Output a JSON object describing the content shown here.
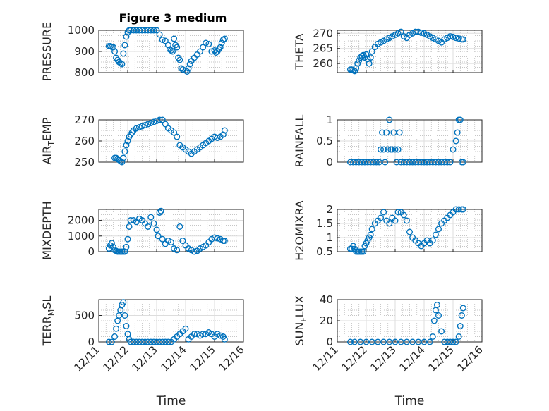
{
  "figure": {
    "title": "Figure 3 medium",
    "marker_color": "#0072BD",
    "x_ticks": [
      {
        "v": 0,
        "label": "12/11"
      },
      {
        "v": 1,
        "label": "12/12"
      },
      {
        "v": 2,
        "label": "12/13"
      },
      {
        "v": 3,
        "label": "12/14"
      },
      {
        "v": 4,
        "label": "12/15"
      },
      {
        "v": 5,
        "label": "12/16"
      }
    ],
    "x_label": "Time"
  },
  "chart_data": [
    {
      "type": "scatter",
      "ylabel": "PRESSURE",
      "xlim": [
        0,
        5
      ],
      "ylim": [
        800,
        1000
      ],
      "yticks": [
        800,
        900,
        1000
      ],
      "xgrid_label": "Time",
      "series": [
        {
          "x": [
            0.35,
            0.4,
            0.45,
            0.5,
            0.55,
            0.6,
            0.65,
            0.7,
            0.75,
            0.8,
            0.85,
            0.9,
            0.95,
            1.0,
            1.05,
            1.1,
            1.2,
            1.3,
            1.4,
            1.5,
            1.6,
            1.7,
            1.8,
            1.9,
            2.0,
            2.1,
            2.2,
            2.3,
            2.4,
            2.45,
            2.5,
            2.55,
            2.6,
            2.65,
            2.7,
            2.75,
            2.8,
            2.85,
            2.9,
            3.0,
            3.05,
            3.1,
            3.15,
            3.2,
            3.3,
            3.4,
            3.5,
            3.6,
            3.7,
            3.8,
            3.9,
            4.0,
            4.05,
            4.1,
            4.15,
            4.2,
            4.25,
            4.3,
            4.35
          ],
          "y": [
            925,
            925,
            922,
            920,
            900,
            870,
            860,
            850,
            845,
            840,
            890,
            930,
            970,
            990,
            1000,
            1000,
            1000,
            1000,
            1000,
            1000,
            1000,
            1000,
            1000,
            1000,
            1000,
            980,
            955,
            950,
            930,
            910,
            905,
            900,
            960,
            930,
            920,
            870,
            860,
            820,
            815,
            810,
            805,
            820,
            840,
            855,
            870,
            885,
            900,
            920,
            940,
            935,
            900,
            905,
            895,
            900,
            910,
            920,
            940,
            955,
            960
          ]
        }
      ]
    },
    {
      "type": "scatter",
      "ylabel": "THETA",
      "xlim": [
        0,
        5
      ],
      "ylim": [
        257,
        271
      ],
      "yticks": [
        260,
        265,
        270
      ],
      "series": [
        {
          "x": [
            0.45,
            0.5,
            0.55,
            0.6,
            0.65,
            0.7,
            0.75,
            0.8,
            0.85,
            0.9,
            0.95,
            1.0,
            1.05,
            1.1,
            1.15,
            1.2,
            1.3,
            1.4,
            1.5,
            1.6,
            1.7,
            1.8,
            1.9,
            2.0,
            2.1,
            2.2,
            2.3,
            2.4,
            2.5,
            2.6,
            2.7,
            2.8,
            2.9,
            3.0,
            3.1,
            3.2,
            3.3,
            3.4,
            3.5,
            3.6,
            3.7,
            3.8,
            3.9,
            4.0,
            4.1,
            4.2,
            4.3,
            4.35
          ],
          "y": [
            258,
            258,
            257.8,
            257.5,
            258.5,
            260,
            261,
            262,
            262.5,
            262.8,
            262,
            263,
            261.5,
            260,
            262,
            264,
            265.5,
            266.5,
            267,
            267.5,
            268,
            268.5,
            269,
            269.5,
            270,
            270.5,
            269,
            268.5,
            269.5,
            270,
            270.5,
            270.5,
            270.2,
            270,
            269.5,
            269,
            268.5,
            268,
            267.5,
            267,
            268,
            268.5,
            269,
            268.8,
            268.5,
            268.3,
            268,
            268
          ]
        }
      ]
    },
    {
      "type": "scatter",
      "ylabel": "AIR_TEMP",
      "xlim": [
        0,
        5
      ],
      "ylim": [
        250,
        270
      ],
      "yticks": [
        250,
        260,
        270
      ],
      "series": [
        {
          "x": [
            0.55,
            0.6,
            0.65,
            0.7,
            0.75,
            0.8,
            0.85,
            0.9,
            0.95,
            1.0,
            1.05,
            1.1,
            1.15,
            1.2,
            1.3,
            1.4,
            1.5,
            1.6,
            1.7,
            1.8,
            1.9,
            2.0,
            2.1,
            2.2,
            2.3,
            2.4,
            2.5,
            2.6,
            2.7,
            2.8,
            2.9,
            3.0,
            3.1,
            3.2,
            3.3,
            3.4,
            3.5,
            3.6,
            3.7,
            3.8,
            3.9,
            4.0,
            4.1,
            4.2,
            4.3,
            4.35
          ],
          "y": [
            252,
            252,
            251.5,
            251,
            250.5,
            250,
            252,
            255,
            258,
            260,
            262,
            263,
            264,
            265,
            266,
            266.5,
            267,
            267.5,
            268,
            268.5,
            269,
            269.5,
            270,
            270,
            268,
            266,
            265,
            264,
            262,
            258,
            257,
            256,
            255,
            254,
            255,
            256,
            257,
            258,
            259,
            260,
            261,
            262,
            261.5,
            262,
            263,
            265
          ]
        }
      ]
    },
    {
      "type": "scatter",
      "ylabel": "RAINFALL",
      "xlim": [
        0,
        5
      ],
      "ylim": [
        0,
        1
      ],
      "yticks": [
        0,
        0.5,
        1
      ],
      "series": [
        {
          "x": [
            0.45,
            0.55,
            0.65,
            0.75,
            0.85,
            0.95,
            1.05,
            1.15,
            1.25,
            1.35,
            1.45,
            1.5,
            1.55,
            1.6,
            1.65,
            1.7,
            1.75,
            1.8,
            1.85,
            1.9,
            1.95,
            2.0,
            2.05,
            2.1,
            2.15,
            2.2,
            2.3,
            2.4,
            2.5,
            2.6,
            2.7,
            2.8,
            2.9,
            3.0,
            3.1,
            3.2,
            3.3,
            3.4,
            3.5,
            3.6,
            3.7,
            3.8,
            3.9,
            4.0,
            4.1,
            4.15,
            4.2,
            4.25,
            4.3,
            4.35
          ],
          "y": [
            0,
            0,
            0,
            0,
            0,
            0,
            0,
            0,
            0,
            0,
            0,
            0.3,
            0.7,
            0.3,
            0,
            0.7,
            0.3,
            1,
            0.3,
            0.3,
            0.7,
            0.3,
            0,
            0.3,
            0.7,
            0,
            0,
            0,
            0,
            0,
            0,
            0,
            0,
            0,
            0,
            0,
            0,
            0,
            0,
            0,
            0,
            0,
            0,
            0.3,
            0.5,
            0.7,
            1,
            1,
            0,
            0
          ]
        }
      ]
    },
    {
      "type": "scatter",
      "ylabel": "MIXDEPTH",
      "xlim": [
        0,
        5
      ],
      "ylim": [
        0,
        2700
      ],
      "yticks": [
        0,
        1000,
        2000
      ],
      "series": [
        {
          "x": [
            0.35,
            0.4,
            0.45,
            0.5,
            0.55,
            0.6,
            0.65,
            0.7,
            0.75,
            0.8,
            0.85,
            0.9,
            0.95,
            1.0,
            1.05,
            1.1,
            1.2,
            1.3,
            1.4,
            1.5,
            1.6,
            1.7,
            1.8,
            1.9,
            2.0,
            2.05,
            2.1,
            2.15,
            2.2,
            2.3,
            2.4,
            2.5,
            2.6,
            2.7,
            2.8,
            2.9,
            3.0,
            3.1,
            3.2,
            3.3,
            3.4,
            3.5,
            3.6,
            3.7,
            3.8,
            3.9,
            4.0,
            4.1,
            4.2,
            4.3,
            4.35
          ],
          "y": [
            200,
            400,
            550,
            300,
            100,
            50,
            0,
            0,
            0,
            0,
            0,
            0,
            300,
            800,
            1600,
            2000,
            2000,
            1900,
            2100,
            2000,
            1800,
            1600,
            2200,
            1800,
            1400,
            1000,
            2500,
            2600,
            800,
            500,
            700,
            600,
            200,
            100,
            1600,
            700,
            400,
            200,
            100,
            0,
            50,
            200,
            300,
            400,
            600,
            800,
            900,
            850,
            800,
            700,
            700
          ]
        }
      ]
    },
    {
      "type": "scatter",
      "ylabel": "H2OMIXRA",
      "xlim": [
        0,
        5
      ],
      "ylim": [
        0.5,
        2
      ],
      "yticks": [
        0.5,
        1,
        1.5,
        2
      ],
      "series": [
        {
          "x": [
            0.45,
            0.5,
            0.55,
            0.6,
            0.65,
            0.7,
            0.75,
            0.8,
            0.85,
            0.9,
            0.95,
            1.0,
            1.05,
            1.1,
            1.15,
            1.2,
            1.3,
            1.4,
            1.5,
            1.6,
            1.7,
            1.8,
            1.9,
            2.0,
            2.1,
            2.2,
            2.3,
            2.4,
            2.5,
            2.6,
            2.7,
            2.8,
            2.9,
            3.0,
            3.1,
            3.2,
            3.3,
            3.4,
            3.5,
            3.6,
            3.7,
            3.8,
            3.9,
            4.0,
            4.1,
            4.2,
            4.3,
            4.35
          ],
          "y": [
            0.6,
            0.6,
            0.7,
            0.6,
            0.5,
            0.5,
            0.5,
            0.5,
            0.5,
            0.5,
            0.7,
            0.8,
            0.9,
            1.0,
            1.1,
            1.3,
            1.5,
            1.6,
            1.7,
            1.9,
            1.6,
            1.5,
            1.7,
            1.6,
            1.9,
            1.9,
            1.8,
            1.6,
            1.2,
            1.0,
            0.9,
            0.8,
            0.7,
            0.8,
            0.9,
            0.8,
            0.9,
            1.1,
            1.3,
            1.5,
            1.6,
            1.7,
            1.8,
            1.9,
            2.0,
            2.0,
            2.0,
            2.0
          ]
        }
      ]
    },
    {
      "type": "scatter",
      "ylabel": "TERR_MSL",
      "xlim": [
        0,
        5
      ],
      "ylim": [
        0,
        800
      ],
      "yticks": [
        0,
        500
      ],
      "series": [
        {
          "x": [
            0.35,
            0.45,
            0.55,
            0.6,
            0.65,
            0.7,
            0.75,
            0.8,
            0.85,
            0.9,
            0.95,
            1.0,
            1.05,
            1.1,
            1.2,
            1.3,
            1.4,
            1.5,
            1.6,
            1.7,
            1.8,
            1.9,
            2.0,
            2.1,
            2.2,
            2.3,
            2.4,
            2.5,
            2.6,
            2.7,
            2.8,
            2.9,
            3.0,
            3.1,
            3.2,
            3.3,
            3.4,
            3.5,
            3.6,
            3.7,
            3.8,
            3.9,
            4.0,
            4.1,
            4.2,
            4.3,
            4.35
          ],
          "y": [
            0,
            0,
            100,
            250,
            400,
            500,
            600,
            700,
            750,
            500,
            300,
            150,
            50,
            0,
            0,
            0,
            0,
            0,
            0,
            0,
            0,
            0,
            0,
            0,
            0,
            0,
            0,
            0,
            50,
            100,
            150,
            200,
            250,
            50,
            100,
            150,
            150,
            120,
            150,
            150,
            180,
            150,
            100,
            150,
            120,
            100,
            50
          ]
        }
      ]
    },
    {
      "type": "scatter",
      "ylabel": "SUN_FLUX",
      "xlim": [
        0,
        5
      ],
      "ylim": [
        0,
        40
      ],
      "yticks": [
        0,
        20,
        40
      ],
      "series": [
        {
          "x": [
            0.45,
            0.6,
            0.8,
            1.0,
            1.2,
            1.4,
            1.6,
            1.8,
            2.0,
            2.2,
            2.4,
            2.6,
            2.8,
            3.0,
            3.2,
            3.3,
            3.35,
            3.4,
            3.45,
            3.5,
            3.6,
            3.7,
            3.8,
            3.9,
            4.0,
            4.1,
            4.2,
            4.25,
            4.3,
            4.35
          ],
          "y": [
            0,
            0,
            0,
            0,
            0,
            0,
            0,
            0,
            0,
            0,
            0,
            0,
            0,
            0,
            0,
            5,
            20,
            30,
            35,
            25,
            10,
            0,
            0,
            0,
            0,
            0,
            5,
            15,
            25,
            32
          ]
        }
      ]
    }
  ]
}
